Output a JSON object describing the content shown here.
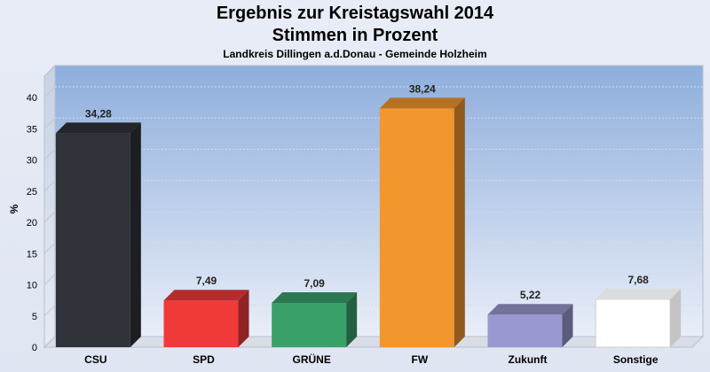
{
  "chart_data": {
    "type": "bar",
    "title": "Ergebnis zur Kreistagswahl 2014",
    "subtitle": "Stimmen in Prozent",
    "caption": "Landkreis Dillingen a.d.Donau - Gemeinde Holzheim",
    "ylabel": "%",
    "xlabel": "",
    "ylim": [
      0,
      40
    ],
    "yticks": [
      0,
      5,
      10,
      15,
      20,
      25,
      30,
      35,
      40
    ],
    "grid": true,
    "legend": "none",
    "categories": [
      "CSU",
      "SPD",
      "GRÜNE",
      "FW",
      "Zukunft",
      "Sonstige"
    ],
    "values": [
      34.28,
      7.49,
      7.09,
      38.24,
      5.22,
      7.68
    ],
    "value_labels": [
      "34,28",
      "7,49",
      "7,09",
      "38,24",
      "5,22",
      "7,68"
    ],
    "colors": [
      "#2f3238",
      "#f03a3a",
      "#3aa06a",
      "#f2962e",
      "#9a98d0",
      "#ffffff"
    ]
  }
}
